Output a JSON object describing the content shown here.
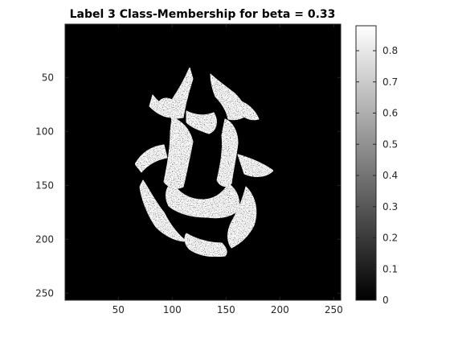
{
  "chart_data": {
    "type": "heatmap",
    "title": "Label 3 Class-Membership for beta = 0.33",
    "xlabel": "",
    "ylabel": "",
    "xlim": [
      0.5,
      256.5
    ],
    "ylim": [
      0.5,
      256.5
    ],
    "y_direction": "reversed",
    "x_ticks": [
      50,
      100,
      150,
      200,
      250
    ],
    "y_ticks": [
      50,
      100,
      150,
      200,
      250
    ],
    "colormap": "gray",
    "colorbar": {
      "clim": [
        0,
        0.88
      ],
      "ticks": [
        0,
        0.1,
        0.2,
        0.3,
        0.4,
        0.5,
        0.6,
        0.7,
        0.8
      ],
      "tick_labels": [
        "0",
        "0.1",
        "0.2",
        "0.3",
        "0.4",
        "0.5",
        "0.6",
        "0.7",
        "0.8"
      ],
      "location": "right"
    },
    "grid": false,
    "image_content": "axial brain slice white-matter membership map: bright (~0.8) white-matter tracts on a black (0) background"
  },
  "colors": {
    "background": "#000000",
    "foreground": "#ffffff",
    "axis": "#262626"
  }
}
